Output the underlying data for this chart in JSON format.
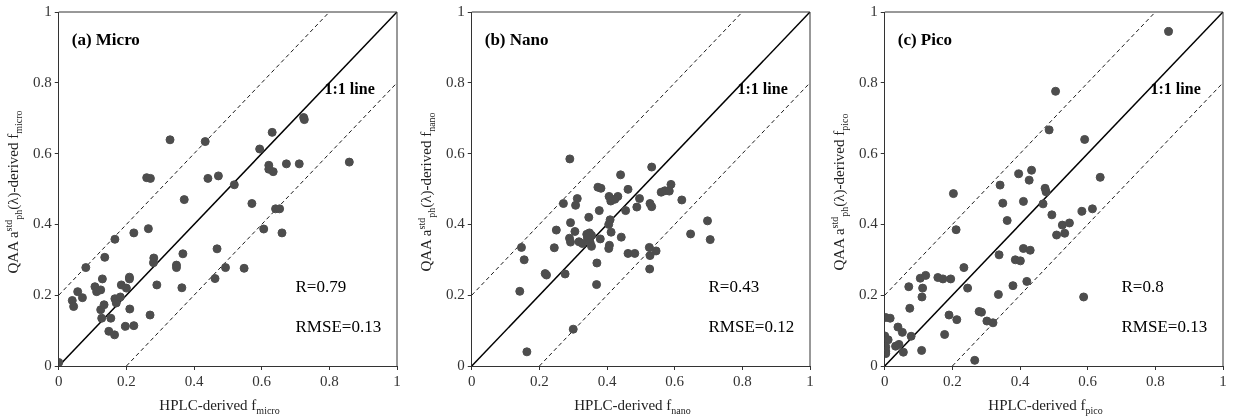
{
  "chart_data": [
    {
      "type": "scatter",
      "title": "(a) Micro",
      "xlabel": "HPLC-derived f$_{micro}$",
      "ylabel": "QAA a$^{std}$$_{ph}$(λ)-derived f$_{micro}$",
      "xlim": [
        0,
        1
      ],
      "ylim": [
        0,
        1
      ],
      "xticks": [
        0,
        0.2,
        0.4,
        0.6,
        0.8,
        1
      ],
      "yticks": [
        0,
        0.2,
        0.4,
        0.6,
        0.8,
        1
      ],
      "grid": false,
      "legend": false,
      "marker": "circle",
      "series": [
        {
          "color": "#4d4d4d",
          "x": [
            0,
            0.04,
            0.044,
            0.056,
            0.07,
            0.08,
            0.107,
            0.112,
            0.124,
            0.129,
            0.124,
            0.127,
            0.134,
            0.136,
            0.154,
            0.148,
            0.165,
            0.166,
            0.166,
            0.17,
            0.182,
            0.185,
            0.197,
            0.2,
            0.209,
            0.209,
            0.21,
            0.222,
            0.222,
            0.26,
            0.271,
            0.265,
            0.27,
            0.281,
            0.28,
            0.29,
            0.329,
            0.348,
            0.348,
            0.364,
            0.367,
            0.371,
            0.433,
            0.441,
            0.462,
            0.468,
            0.472,
            0.493,
            0.519,
            0.548,
            0.571,
            0.594,
            0.606,
            0.621,
            0.621,
            0.631,
            0.634,
            0.641,
            0.653,
            0.66,
            0.673,
            0.711,
            0.724,
            0.726,
            0.859
          ],
          "values": [
            0.01,
            0.185,
            0.168,
            0.21,
            0.193,
            0.278,
            0.224,
            0.21,
            0.215,
            0.246,
            0.159,
            0.135,
            0.173,
            0.307,
            0.135,
            0.098,
            0.088,
            0.358,
            0.19,
            0.178,
            0.195,
            0.229,
            0.112,
            0.22,
            0.246,
            0.251,
            0.161,
            0.376,
            0.114,
            0.532,
            0.53,
            0.388,
            0.144,
            0.305,
            0.292,
            0.229,
            0.639,
            0.285,
            0.278,
            0.221,
            0.317,
            0.47,
            0.634,
            0.53,
            0.247,
            0.331,
            0.537,
            0.278,
            0.512,
            0.276,
            0.459,
            0.613,
            0.387,
            0.567,
            0.556,
            0.66,
            0.549,
            0.444,
            0.444,
            0.376,
            0.571,
            0.571,
            0.702,
            0.696,
            0.576
          ]
        },
        {
          "type": "line",
          "color": "#000000",
          "marker": "none",
          "line_style": "solid",
          "x": [
            0,
            1
          ],
          "values": [
            0,
            1
          ]
        },
        {
          "type": "line",
          "color": "#000000",
          "marker": "none",
          "line_style": "dashed",
          "x": [
            0,
            0.8
          ],
          "values": [
            0.2,
            1
          ]
        },
        {
          "type": "line",
          "color": "#000000",
          "marker": "none",
          "line_style": "dashed",
          "x": [
            0.2,
            1
          ],
          "values": [
            0,
            0.8
          ]
        }
      ],
      "annotations": [
        "1:1 line",
        "R=0.79",
        "RMSE=0.13"
      ]
    },
    {
      "type": "scatter",
      "title": "(b) Nano",
      "xlabel": "HPLC-derived f$_{nano}$",
      "ylabel": "QAA a$^{std}$$_{ph}$(λ)-derived f$_{nano}$",
      "xlim": [
        0,
        1
      ],
      "ylim": [
        0,
        1
      ],
      "xticks": [
        0,
        0.2,
        0.4,
        0.6,
        0.8,
        1
      ],
      "yticks": [
        0,
        0.2,
        0.4,
        0.6,
        0.8,
        1
      ],
      "grid": false,
      "legend": false,
      "marker": "circle",
      "series": [
        {
          "color": "#4d4d4d",
          "x": [
            0.29,
            0.532,
            0.44,
            0.373,
            0.382,
            0.462,
            0.589,
            0.56,
            0.571,
            0.584,
            0.621,
            0.406,
            0.432,
            0.411,
            0.423,
            0.496,
            0.312,
            0.307,
            0.271,
            0.527,
            0.532,
            0.488,
            0.455,
            0.377,
            0.346,
            0.409,
            0.405,
            0.292,
            0.25,
            0.305,
            0.412,
            0.34,
            0.348,
            0.354,
            0.342,
            0.289,
            0.292,
            0.317,
            0.327,
            0.38,
            0.442,
            0.35,
            0.354,
            0.407,
            0.405,
            0.244,
            0.147,
            0.155,
            0.525,
            0.545,
            0.527,
            0.462,
            0.482,
            0.37,
            0.526,
            0.647,
            0.697,
            0.705,
            0.217,
            0.221,
            0.276,
            0.369,
            0.142,
            0.3,
            0.163
          ],
          "values": [
            0.585,
            0.562,
            0.54,
            0.505,
            0.502,
            0.499,
            0.513,
            0.491,
            0.495,
            0.494,
            0.469,
            0.479,
            0.479,
            0.466,
            0.471,
            0.473,
            0.473,
            0.454,
            0.459,
            0.459,
            0.45,
            0.449,
            0.439,
            0.439,
            0.42,
            0.413,
            0.4,
            0.405,
            0.384,
            0.38,
            0.378,
            0.372,
            0.376,
            0.369,
            0.362,
            0.361,
            0.35,
            0.351,
            0.346,
            0.359,
            0.364,
            0.349,
            0.338,
            0.341,
            0.332,
            0.334,
            0.335,
            0.3,
            0.335,
            0.325,
            0.312,
            0.318,
            0.318,
            0.291,
            0.274,
            0.373,
            0.41,
            0.357,
            0.261,
            0.257,
            0.26,
            0.23,
            0.211,
            0.104,
            0.04
          ]
        },
        {
          "type": "line",
          "color": "#000000",
          "marker": "none",
          "line_style": "solid",
          "x": [
            0,
            1
          ],
          "values": [
            0,
            1
          ]
        },
        {
          "type": "line",
          "color": "#000000",
          "marker": "none",
          "line_style": "dashed",
          "x": [
            0,
            0.8
          ],
          "values": [
            0.2,
            1
          ]
        },
        {
          "type": "line",
          "color": "#000000",
          "marker": "none",
          "line_style": "dashed",
          "x": [
            0.2,
            1
          ],
          "values": [
            0,
            0.8
          ]
        }
      ],
      "annotations": [
        "1:1 line",
        "R=0.43",
        "RMSE=0.12"
      ]
    },
    {
      "type": "scatter",
      "title": "(c) Pico",
      "xlabel": "HPLC-derived f$_{pico}$",
      "ylabel": "QAA a$^{std}$$_{ph}$(λ)-derived f$_{pico}$",
      "xlim": [
        0,
        1
      ],
      "ylim": [
        0,
        1
      ],
      "xticks": [
        0,
        0.2,
        0.4,
        0.6,
        0.8,
        1
      ],
      "yticks": [
        0,
        0.2,
        0.4,
        0.6,
        0.8,
        1
      ],
      "grid": false,
      "legend": false,
      "marker": "circle",
      "series": [
        {
          "color": "#4d4d4d",
          "x": [
            0.839,
            0.505,
            0.486,
            0.591,
            0.203,
            0.434,
            0.396,
            0.427,
            0.341,
            0.474,
            0.477,
            0.637,
            0.41,
            0.349,
            0.468,
            0.211,
            0.362,
            0.494,
            0.583,
            0.614,
            0.525,
            0.546,
            0.508,
            0.532,
            0.41,
            0.43,
            0.338,
            0.386,
            0.401,
            0.234,
            0.105,
            0.121,
            0.157,
            0.172,
            0.195,
            0.071,
            0.112,
            0.245,
            0.379,
            0.42,
            0.11,
            0.336,
            0.074,
            0.588,
            0.003,
            0.016,
            0.19,
            0.213,
            0.279,
            0.286,
            0.302,
            0.32,
            0.039,
            0.052,
            0.078,
            0.177,
            0,
            0.01,
            0.032,
            0.042,
            0.003,
            0.003,
            0.003,
            0.055,
            0.109,
            0.266
          ],
          "values": [
            0.945,
            0.776,
            0.667,
            0.64,
            0.487,
            0.553,
            0.543,
            0.525,
            0.511,
            0.502,
            0.492,
            0.533,
            0.465,
            0.46,
            0.458,
            0.385,
            0.411,
            0.427,
            0.437,
            0.444,
            0.398,
            0.404,
            0.37,
            0.375,
            0.332,
            0.327,
            0.314,
            0.3,
            0.297,
            0.278,
            0.248,
            0.256,
            0.25,
            0.246,
            0.246,
            0.224,
            0.22,
            0.22,
            0.227,
            0.239,
            0.195,
            0.202,
            0.163,
            0.195,
            0.137,
            0.135,
            0.144,
            0.131,
            0.154,
            0.152,
            0.127,
            0.122,
            0.11,
            0.095,
            0.084,
            0.089,
            0.085,
            0.074,
            0.056,
            0.061,
            0.054,
            0.042,
            0.035,
            0.039,
            0.044,
            0.016
          ]
        },
        {
          "type": "line",
          "color": "#000000",
          "marker": "none",
          "line_style": "solid",
          "x": [
            0,
            1
          ],
          "values": [
            0,
            1
          ]
        },
        {
          "type": "line",
          "color": "#000000",
          "marker": "none",
          "line_style": "dashed",
          "x": [
            0,
            0.8
          ],
          "values": [
            0.2,
            1
          ]
        },
        {
          "type": "line",
          "color": "#000000",
          "marker": "none",
          "line_style": "dashed",
          "x": [
            0.2,
            1
          ],
          "values": [
            0,
            0.8
          ]
        }
      ],
      "annotations": [
        "1:1 line",
        "R=0.8",
        "RMSE=0.13"
      ]
    }
  ]
}
